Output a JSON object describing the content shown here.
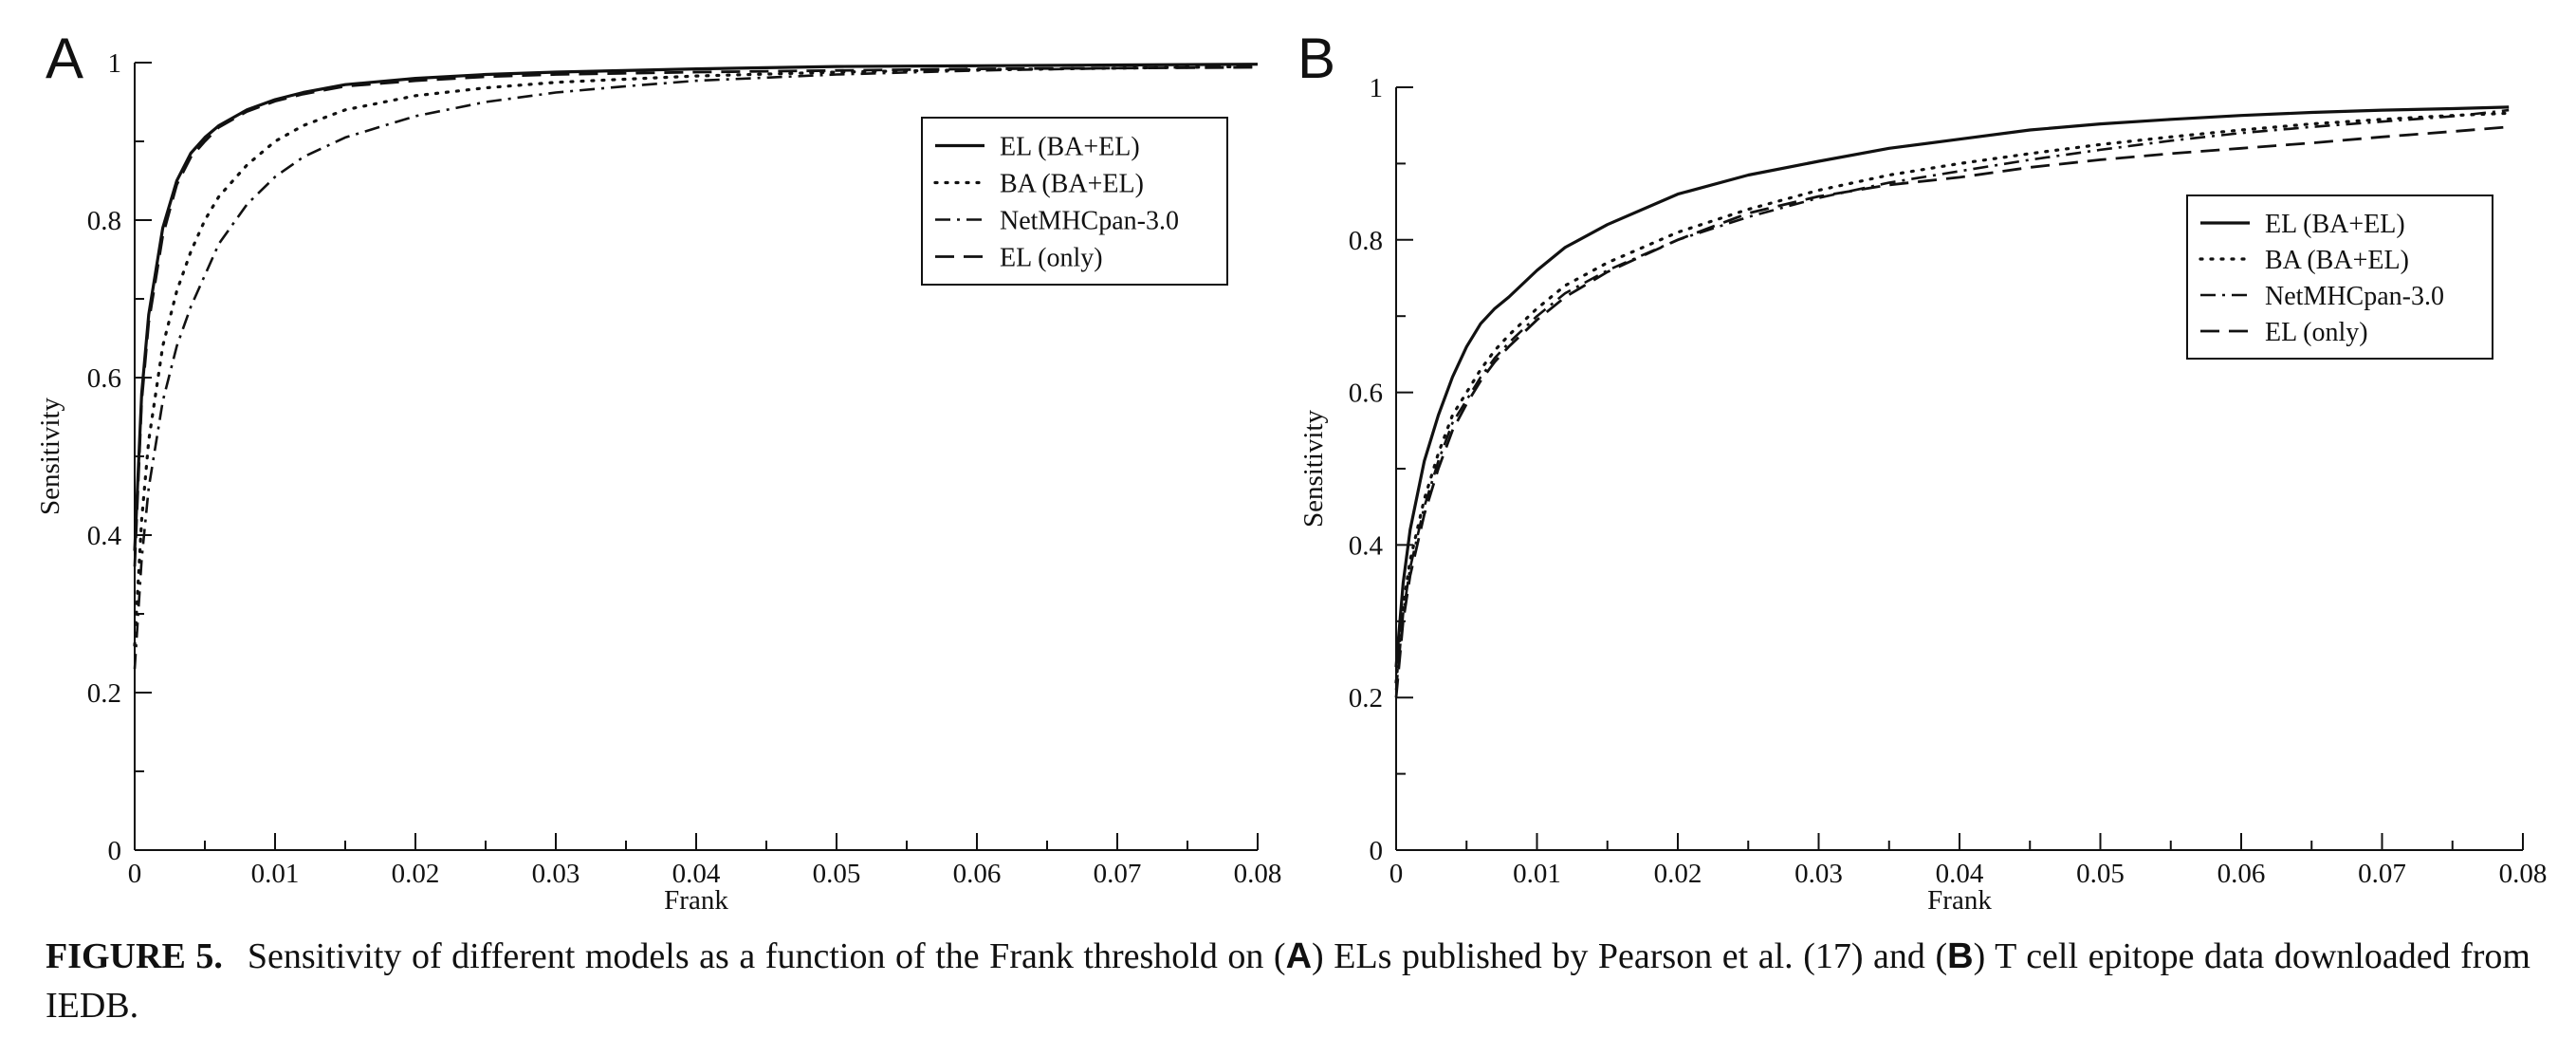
{
  "chart_data": [
    {
      "type": "line",
      "panel": "A",
      "xlabel": "Frank",
      "ylabel": "Sensitivity",
      "xlim": [
        0,
        0.08
      ],
      "ylim": [
        0,
        1
      ],
      "xticks": [
        "0",
        "0.01",
        "0.02",
        "0.03",
        "0.04",
        "0.05",
        "0.06",
        "0.07",
        "0.08"
      ],
      "yticks": [
        "0",
        "0.2",
        "0.4",
        "0.6",
        "0.8",
        "1"
      ],
      "legend_position": "top-right",
      "series": [
        {
          "name": "EL (BA+EL)",
          "style": "solid",
          "x": [
            0,
            0.0005,
            0.001,
            0.002,
            0.003,
            0.004,
            0.005,
            0.006,
            0.008,
            0.01,
            0.012,
            0.015,
            0.02,
            0.025,
            0.03,
            0.04,
            0.05,
            0.06,
            0.07,
            0.08
          ],
          "y": [
            0.38,
            0.58,
            0.68,
            0.79,
            0.85,
            0.885,
            0.905,
            0.92,
            0.94,
            0.953,
            0.962,
            0.972,
            0.98,
            0.985,
            0.988,
            0.992,
            0.995,
            0.996,
            0.997,
            0.998
          ]
        },
        {
          "name": "BA (BA+EL)",
          "style": "dotted",
          "x": [
            0,
            0.0005,
            0.001,
            0.002,
            0.003,
            0.004,
            0.005,
            0.006,
            0.008,
            0.01,
            0.012,
            0.015,
            0.02,
            0.025,
            0.03,
            0.04,
            0.05,
            0.06,
            0.07,
            0.08
          ],
          "y": [
            0.26,
            0.42,
            0.52,
            0.64,
            0.71,
            0.76,
            0.8,
            0.83,
            0.87,
            0.9,
            0.92,
            0.94,
            0.958,
            0.968,
            0.975,
            0.983,
            0.988,
            0.991,
            0.993,
            0.995
          ]
        },
        {
          "name": "NetMHCpan-3.0",
          "style": "dashdot",
          "x": [
            0,
            0.0005,
            0.001,
            0.002,
            0.003,
            0.004,
            0.005,
            0.006,
            0.008,
            0.01,
            0.012,
            0.015,
            0.02,
            0.025,
            0.03,
            0.035,
            0.04,
            0.05,
            0.06,
            0.07,
            0.08
          ],
          "y": [
            0.23,
            0.37,
            0.46,
            0.57,
            0.64,
            0.69,
            0.73,
            0.77,
            0.82,
            0.855,
            0.88,
            0.905,
            0.932,
            0.95,
            0.962,
            0.97,
            0.977,
            0.985,
            0.99,
            0.993,
            0.995
          ]
        },
        {
          "name": "EL (only)",
          "style": "dashed",
          "x": [
            0,
            0.0005,
            0.001,
            0.002,
            0.003,
            0.004,
            0.005,
            0.006,
            0.008,
            0.01,
            0.012,
            0.015,
            0.02,
            0.025,
            0.03,
            0.04,
            0.05,
            0.06,
            0.07,
            0.08
          ],
          "y": [
            0.36,
            0.57,
            0.67,
            0.78,
            0.845,
            0.88,
            0.9,
            0.918,
            0.938,
            0.951,
            0.96,
            0.97,
            0.977,
            0.982,
            0.985,
            0.988,
            0.99,
            0.992,
            0.993,
            0.994
          ]
        }
      ]
    },
    {
      "type": "line",
      "panel": "B",
      "xlabel": "Frank",
      "ylabel": "Sensitivity",
      "xlim": [
        0,
        0.08
      ],
      "ylim": [
        0,
        1
      ],
      "xticks": [
        "0",
        "0.01",
        "0.02",
        "0.03",
        "0.04",
        "0.05",
        "0.06",
        "0.07",
        "0.08"
      ],
      "yticks": [
        "0",
        "0.2",
        "0.4",
        "0.6",
        "0.8",
        "1"
      ],
      "legend_position": "top-right",
      "series": [
        {
          "name": "EL (BA+EL)",
          "style": "solid",
          "x": [
            0,
            0.0005,
            0.001,
            0.002,
            0.003,
            0.004,
            0.005,
            0.006,
            0.007,
            0.008,
            0.01,
            0.012,
            0.015,
            0.02,
            0.025,
            0.03,
            0.035,
            0.04,
            0.045,
            0.05,
            0.055,
            0.06,
            0.065,
            0.07,
            0.075,
            0.079
          ],
          "y": [
            0.24,
            0.35,
            0.42,
            0.51,
            0.57,
            0.62,
            0.66,
            0.69,
            0.71,
            0.725,
            0.76,
            0.79,
            0.82,
            0.86,
            0.885,
            0.903,
            0.92,
            0.932,
            0.944,
            0.952,
            0.958,
            0.963,
            0.967,
            0.97,
            0.972,
            0.974
          ]
        },
        {
          "name": "BA (BA+EL)",
          "style": "dotted",
          "x": [
            0,
            0.0005,
            0.001,
            0.002,
            0.003,
            0.004,
            0.005,
            0.006,
            0.007,
            0.008,
            0.01,
            0.012,
            0.015,
            0.02,
            0.025,
            0.03,
            0.035,
            0.04,
            0.045,
            0.05,
            0.055,
            0.06,
            0.065,
            0.07,
            0.075,
            0.079
          ],
          "y": [
            0.22,
            0.32,
            0.38,
            0.46,
            0.52,
            0.57,
            0.6,
            0.63,
            0.655,
            0.675,
            0.71,
            0.74,
            0.77,
            0.81,
            0.84,
            0.865,
            0.885,
            0.9,
            0.913,
            0.925,
            0.935,
            0.944,
            0.952,
            0.958,
            0.963,
            0.966
          ]
        },
        {
          "name": "NetMHCpan-3.0",
          "style": "dashdot",
          "x": [
            0,
            0.0005,
            0.001,
            0.002,
            0.003,
            0.004,
            0.005,
            0.006,
            0.007,
            0.008,
            0.01,
            0.012,
            0.015,
            0.02,
            0.025,
            0.03,
            0.035,
            0.04,
            0.045,
            0.05,
            0.055,
            0.06,
            0.065,
            0.07,
            0.075,
            0.079
          ],
          "y": [
            0.21,
            0.31,
            0.37,
            0.45,
            0.51,
            0.56,
            0.59,
            0.62,
            0.645,
            0.665,
            0.7,
            0.73,
            0.76,
            0.8,
            0.83,
            0.855,
            0.875,
            0.89,
            0.905,
            0.918,
            0.93,
            0.94,
            0.948,
            0.955,
            0.962,
            0.97
          ]
        },
        {
          "name": "EL (only)",
          "style": "dashed",
          "x": [
            0,
            0.0005,
            0.001,
            0.002,
            0.003,
            0.004,
            0.005,
            0.006,
            0.007,
            0.008,
            0.01,
            0.012,
            0.015,
            0.02,
            0.025,
            0.03,
            0.035,
            0.04,
            0.045,
            0.05,
            0.055,
            0.06,
            0.065,
            0.07,
            0.075,
            0.079
          ],
          "y": [
            0.2,
            0.3,
            0.36,
            0.44,
            0.5,
            0.55,
            0.585,
            0.615,
            0.64,
            0.66,
            0.695,
            0.725,
            0.758,
            0.8,
            0.835,
            0.857,
            0.872,
            0.882,
            0.895,
            0.905,
            0.913,
            0.92,
            0.927,
            0.935,
            0.942,
            0.948
          ]
        }
      ]
    }
  ],
  "caption": {
    "label": "FIGURE 5.",
    "text_1": "Sensitivity of different models as a function of the Frank threshold on (",
    "panel_a": "A",
    "text_2": ") ELs published by Pearson et al. (17) and (",
    "panel_b": "B",
    "text_3": ") T cell epitope data downloaded from IEDB."
  }
}
